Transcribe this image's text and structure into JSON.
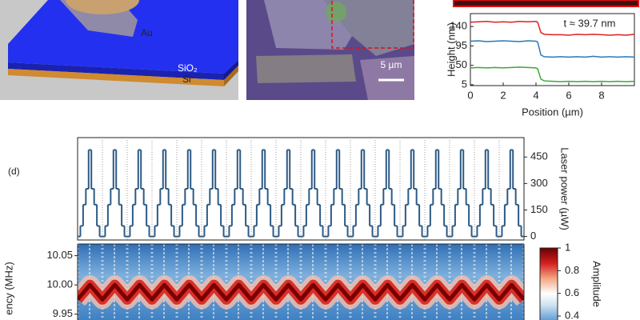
{
  "panels": {
    "a": {
      "labels": [
        "Au",
        "SiO₂",
        "Si"
      ]
    },
    "b": {
      "scale_bar": "5 µm"
    },
    "d": {
      "label": "(d)"
    }
  },
  "chart_data": [
    {
      "type": "line",
      "xlabel": "Position (µm)",
      "ylabel": "Height (nm)",
      "annotation": "t ≈ 39.7 nm",
      "x": [
        0,
        0.5,
        1,
        1.5,
        2,
        2.5,
        3,
        3.5,
        4,
        4.1,
        4.3,
        4.5,
        5,
        5.5,
        6,
        6.5,
        7,
        7.5,
        8,
        8.5,
        9,
        9.5,
        10
      ],
      "series": [
        {
          "color": "#e02020",
          "values": [
            150,
            151,
            152,
            150,
            151,
            150,
            152,
            151,
            152,
            150,
            126,
            122,
            121,
            121,
            120,
            122,
            121,
            122,
            121,
            120,
            121,
            120,
            122
          ]
        },
        {
          "color": "#2a7ab8",
          "values": [
            106,
            107,
            105,
            106,
            107,
            106,
            105,
            107,
            106,
            104,
            74,
            70,
            69,
            70,
            69,
            70,
            69,
            71,
            69,
            70,
            69,
            70,
            69
          ]
        },
        {
          "color": "#3aa83a",
          "values": [
            44,
            45,
            44,
            45,
            44,
            45,
            46,
            45,
            44,
            42,
            18,
            14,
            13,
            12,
            13,
            12,
            13,
            12,
            13,
            12,
            13,
            12,
            13
          ]
        }
      ],
      "xlim": [
        0,
        10
      ],
      "ylim": [
        3,
        170
      ],
      "xticks": [
        0,
        2,
        4,
        6,
        8
      ],
      "yticks": [
        5,
        50,
        95,
        140
      ]
    },
    {
      "type": "step",
      "ylabel": "Laser power (µW)",
      "color": "#2c5a85",
      "xlim": [
        0,
        18
      ],
      "y2lim": [
        -20,
        560
      ],
      "y2ticks": [
        0,
        150,
        300,
        450
      ],
      "axis": "y2",
      "values": [
        0,
        60,
        180,
        270,
        490,
        270,
        180,
        60,
        0,
        0,
        60,
        180,
        270,
        490,
        270,
        180,
        60,
        0,
        0,
        60,
        180,
        270,
        490,
        270,
        180,
        60,
        0,
        0,
        60,
        180,
        270,
        490,
        270,
        180,
        60,
        0,
        0,
        60,
        180,
        270,
        490,
        270,
        180,
        60,
        0,
        0,
        60,
        180,
        270,
        490,
        270,
        180,
        60,
        0,
        0,
        60,
        180,
        270,
        490,
        270,
        180,
        60,
        0,
        0,
        60,
        180,
        270,
        490,
        270,
        180,
        60,
        0,
        0,
        60,
        180,
        270,
        490,
        270,
        180,
        60,
        0,
        0,
        60,
        180,
        270,
        490,
        270,
        180,
        60,
        0,
        0,
        60,
        180,
        270,
        490,
        270,
        180,
        60,
        0,
        0,
        60,
        180,
        270,
        490,
        270,
        180,
        60,
        0,
        0,
        60,
        180,
        270,
        490,
        270,
        180,
        60,
        0,
        0,
        60,
        180,
        270,
        490,
        270,
        180,
        60,
        0,
        0,
        60,
        180,
        270,
        490,
        270,
        180,
        60,
        0,
        0,
        60,
        180,
        270,
        490,
        270,
        180,
        60,
        0,
        0,
        60,
        180,
        270,
        490,
        270,
        180,
        60,
        0,
        0,
        60,
        180,
        270,
        490,
        270,
        180,
        60,
        0
      ]
    },
    {
      "type": "heatmap",
      "ylabel": "ency (MHz)",
      "xlim": [
        0,
        18
      ],
      "ylim": [
        9.94,
        10.07
      ],
      "yticks": [
        10.05,
        {
          "value": 10,
          "label": "10.00"
        },
        9.95
      ],
      "x": [
        0,
        0.5,
        1,
        1.5,
        2,
        2.5,
        3,
        3.5,
        4,
        4.5,
        5,
        5.5,
        6,
        6.5,
        7,
        7.5,
        8,
        8.5,
        9,
        9.5,
        10,
        10.5,
        11,
        11.5,
        12,
        12.5,
        13,
        13.5,
        14,
        14.5,
        15,
        15.5,
        16,
        16.5,
        17,
        17.5,
        18
      ],
      "values": [
        9.975,
        10,
        9.975,
        10,
        9.975,
        10,
        9.975,
        10,
        9.975,
        10,
        9.975,
        10,
        9.975,
        10,
        9.975,
        10,
        9.975,
        10,
        9.975,
        10,
        9.975,
        10,
        9.975,
        10,
        9.975,
        10,
        9.975,
        10,
        9.975,
        10,
        9.975,
        10,
        9.975,
        10,
        9.975,
        10,
        9.975
      ],
      "colorbar": {
        "label": "Amplitude",
        "lim": [
          0.33,
          1
        ],
        "ticks": [
          1,
          0.8,
          0.6,
          0.4
        ]
      }
    }
  ]
}
